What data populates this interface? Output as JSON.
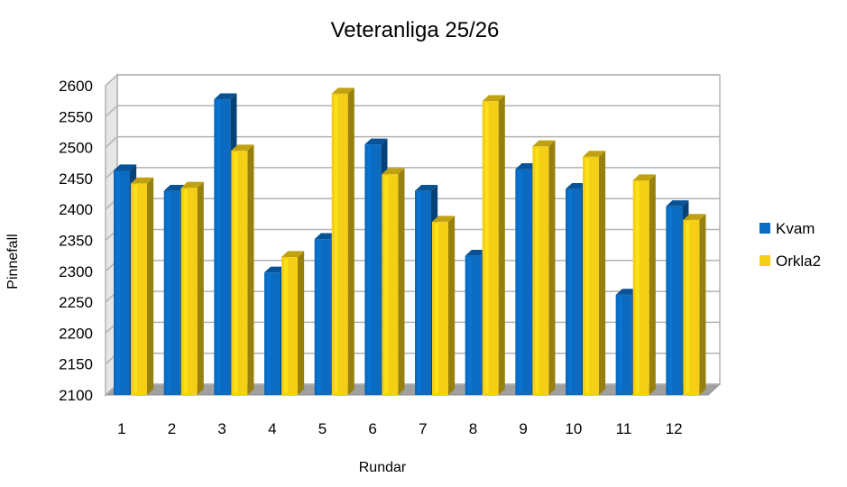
{
  "chart_data": {
    "type": "bar",
    "title": "Veteranliga 25/26",
    "xlabel": "Rundar",
    "ylabel": "Pinnefall",
    "categories": [
      "1",
      "2",
      "3",
      "4",
      "5",
      "6",
      "7",
      "8",
      "9",
      "10",
      "11",
      "12"
    ],
    "series": [
      {
        "name": "Kvam",
        "color": "#0a6bc1",
        "values": [
          2463,
          2430,
          2578,
          2298,
          2352,
          2505,
          2430,
          2325,
          2465,
          2433,
          2262,
          2405
        ]
      },
      {
        "name": "Orkla2",
        "color": "#f5cf16",
        "values": [
          2442,
          2435,
          2495,
          2323,
          2587,
          2457,
          2380,
          2575,
          2502,
          2485,
          2447,
          2383
        ]
      }
    ],
    "ylim": [
      2100,
      2600
    ],
    "yticks": [
      2100,
      2150,
      2200,
      2250,
      2300,
      2350,
      2400,
      2450,
      2500,
      2550,
      2600
    ],
    "grid": true,
    "legend_position": "right",
    "style": "3d-bars"
  }
}
